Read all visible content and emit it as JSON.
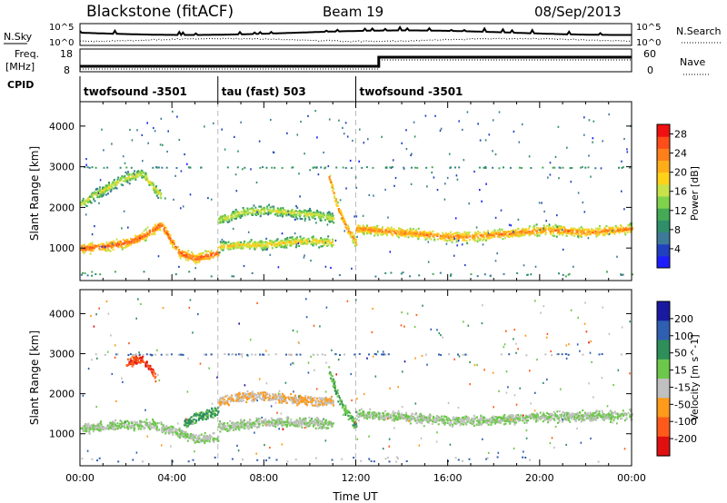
{
  "header": {
    "station": "Blackstone (fitACF)",
    "beam": "Beam 19",
    "date": "08/Sep/2013"
  },
  "top_panels": {
    "nsky_label": "N.Sky",
    "nsearch_label": "N.Search",
    "nsky_ticks": [
      "10^5",
      "10^0"
    ],
    "freq_label": "Freq.",
    "freq_unit": "[MHz]",
    "freq_ticks": [
      "18",
      "8"
    ],
    "nave_label": "Nave",
    "nave_ticks": [
      "60",
      "0"
    ],
    "cpid_label": "CPID"
  },
  "cpid_segments": [
    {
      "start_hour": 0,
      "end_hour": 6,
      "label": "twofsound -3501"
    },
    {
      "start_hour": 6,
      "end_hour": 12,
      "label": "tau (fast) 503"
    },
    {
      "start_hour": 12,
      "end_hour": 24,
      "label": "twofsound -3501"
    }
  ],
  "chart_data": [
    {
      "type": "heatmap",
      "title": "",
      "xlabel": "",
      "ylabel": "Slant Range [km]",
      "xlim": [
        0,
        24
      ],
      "ylim": [
        200,
        4600
      ],
      "yticks": [
        1000,
        2000,
        3000,
        4000
      ],
      "colorbar": {
        "label": "Power [dB]",
        "ticks": [
          4,
          8,
          12,
          16,
          20,
          24,
          28
        ],
        "range": [
          0,
          30
        ],
        "colors": [
          "#1c1cff",
          "#2040c0",
          "#3d7a9a",
          "#2f8f6a",
          "#44aa55",
          "#7fd34a",
          "#c8e24a",
          "#ffd21a",
          "#ffae1a",
          "#ff7f1a",
          "#ff4d1a",
          "#f01010"
        ]
      },
      "bands": [
        {
          "time_hours": [
            0,
            1,
            2,
            2.7,
            3.5,
            4.3,
            5,
            6
          ],
          "range_km": [
            1000,
            1050,
            1150,
            1300,
            1600,
            900,
            750,
            900
          ],
          "power_db": 26
        },
        {
          "time_hours": [
            0,
            1,
            2,
            2.7,
            3.5
          ],
          "range_km": [
            2100,
            2450,
            2750,
            2850,
            2300
          ],
          "power_db": 18
        },
        {
          "time_hours": [
            6,
            7,
            8,
            9,
            10,
            11
          ],
          "range_km": [
            1050,
            1100,
            1100,
            1150,
            1200,
            1150
          ],
          "power_db": 20
        },
        {
          "time_hours": [
            6,
            7,
            8,
            9,
            10,
            11
          ],
          "range_km": [
            1700,
            1900,
            1950,
            1900,
            1850,
            1750
          ],
          "power_db": 18
        },
        {
          "time_hours": [
            10.8,
            11.2,
            11.6,
            12
          ],
          "range_km": [
            2800,
            2000,
            1500,
            1150
          ],
          "power_db": 24
        },
        {
          "time_hours": [
            12,
            13,
            14,
            15,
            16,
            17,
            18,
            19,
            20,
            21,
            22,
            23,
            24
          ],
          "range_km": [
            1500,
            1450,
            1400,
            1350,
            1300,
            1300,
            1350,
            1400,
            1450,
            1450,
            1400,
            1450,
            1500
          ],
          "power_db": 24
        }
      ]
    },
    {
      "type": "heatmap",
      "title": "",
      "xlabel": "Time UT",
      "ylabel": "Slant Range [km]",
      "xlim": [
        0,
        24
      ],
      "ylim": [
        200,
        4600
      ],
      "xticks": [
        "00:00",
        "04:00",
        "08:00",
        "12:00",
        "16:00",
        "20:00",
        "00:00"
      ],
      "yticks": [
        1000,
        2000,
        3000,
        4000
      ],
      "colorbar": {
        "label": "Velocity [m s^-1]",
        "ticks": [
          200,
          100,
          50,
          15,
          -15,
          -50,
          -100,
          -200
        ],
        "range": [
          -250,
          250
        ],
        "colors": [
          "#1a1aa0",
          "#2f5fb0",
          "#2f8f5a",
          "#6cc84a",
          "#c0c0c0",
          "#ff9a1a",
          "#ff5a1a",
          "#e01010"
        ]
      },
      "bands": [
        {
          "time_hours": [
            0,
            1,
            2,
            3,
            4,
            5,
            6
          ],
          "range_km": [
            1150,
            1200,
            1250,
            1250,
            1100,
            900,
            900
          ],
          "velocity": 0
        },
        {
          "time_hours": [
            2,
            2.5,
            3,
            3.3
          ],
          "range_km": [
            2750,
            2900,
            2700,
            2400
          ],
          "velocity": -180
        },
        {
          "time_hours": [
            4.5,
            5,
            5.5,
            6
          ],
          "range_km": [
            1300,
            1400,
            1500,
            1600
          ],
          "velocity": 80
        },
        {
          "time_hours": [
            6,
            7,
            8,
            9,
            10,
            11
          ],
          "range_km": [
            1800,
            1950,
            1950,
            1900,
            1850,
            1800
          ],
          "velocity": -60
        },
        {
          "time_hours": [
            6,
            7,
            8,
            9,
            10,
            11
          ],
          "range_km": [
            1200,
            1250,
            1300,
            1300,
            1300,
            1250
          ],
          "velocity": 0
        },
        {
          "time_hours": [
            10.8,
            11.3,
            12
          ],
          "range_km": [
            2600,
            1800,
            1200
          ],
          "velocity": 50
        },
        {
          "time_hours": [
            12,
            14,
            16,
            18,
            20,
            22,
            24
          ],
          "range_km": [
            1500,
            1450,
            1350,
            1350,
            1450,
            1450,
            1500
          ],
          "velocity": 0
        }
      ]
    }
  ]
}
